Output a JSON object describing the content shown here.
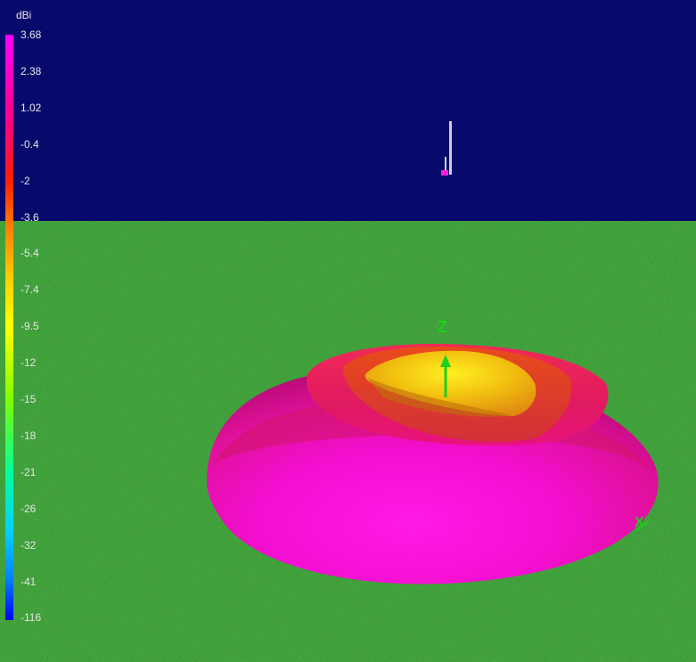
{
  "legend": {
    "unit": "dBi",
    "ticks": [
      "3.68",
      "2.38",
      "1.02",
      "-0.4",
      "-2",
      "-3.6",
      "-5.4",
      "-7.4",
      "-9.5",
      "-12",
      "-15",
      "-18",
      "-21",
      "-26",
      "-32",
      "-41",
      "-116"
    ],
    "gradient_stops": [
      "#ff00ff",
      "#ff0080",
      "#ff2000",
      "#ff8000",
      "#ffd000",
      "#ffff00",
      "#80ff00",
      "#00ffa0",
      "#00d0ff",
      "#0080ff",
      "#0000ff"
    ]
  },
  "axes": {
    "z_label": "Z",
    "x_label": "X"
  },
  "colors": {
    "sky": "#070a6b",
    "ground": "#1e5d1e",
    "pattern_outer": "#ff10d8",
    "pattern_inner": "#f0e000",
    "axis_color": "#1bd11b"
  }
}
